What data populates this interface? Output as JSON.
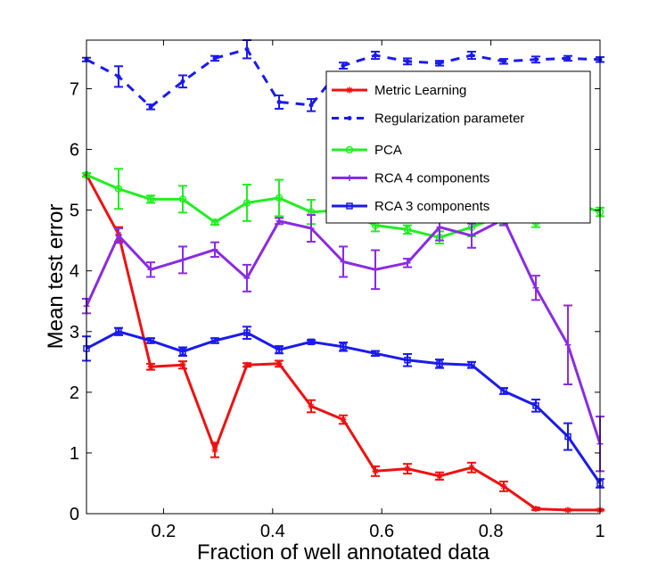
{
  "chart_data": {
    "type": "line",
    "title": "",
    "xlabel": "Fraction of well annotated data",
    "ylabel": "Mean test error",
    "xlim": [
      0.0588,
      1.0
    ],
    "ylim": [
      0,
      7.8
    ],
    "xticks": [
      0.2,
      0.4,
      0.6,
      0.8,
      1
    ],
    "xtick_labels": [
      "0.2",
      "0.4",
      "0.6",
      "0.8",
      "1"
    ],
    "yticks": [
      0,
      1,
      2,
      3,
      4,
      5,
      6,
      7
    ],
    "ytick_labels": [
      "0",
      "1",
      "2",
      "3",
      "4",
      "5",
      "6",
      "7"
    ],
    "grid": false,
    "legend_position": "top-right",
    "x": [
      0.0588,
      0.1176,
      0.1765,
      0.2353,
      0.2941,
      0.3529,
      0.4118,
      0.4706,
      0.5294,
      0.5882,
      0.6471,
      0.7059,
      0.7647,
      0.8235,
      0.8824,
      0.9412,
      1.0
    ],
    "series": [
      {
        "name": "Metric Learning",
        "color": "#ee1111",
        "dash": "solid",
        "marker": "star",
        "values": [
          5.58,
          4.6,
          2.42,
          2.45,
          1.05,
          2.45,
          2.47,
          1.77,
          1.55,
          0.7,
          0.74,
          0.62,
          0.76,
          0.45,
          0.08,
          0.06,
          0.06
        ],
        "errors": [
          0.03,
          0.12,
          0.05,
          0.06,
          0.12,
          0.03,
          0.05,
          0.1,
          0.07,
          0.08,
          0.08,
          0.06,
          0.08,
          0.08,
          0.02,
          0.01,
          0.01
        ]
      },
      {
        "name": "Regularization parameter",
        "color": "#1a1aee",
        "dash": "dashed",
        "marker": "dot",
        "values": [
          7.48,
          7.2,
          6.7,
          7.12,
          7.5,
          7.65,
          6.78,
          6.73,
          7.38,
          7.55,
          7.45,
          7.42,
          7.55,
          7.45,
          7.48,
          7.5,
          7.48
        ],
        "errors": [
          0.03,
          0.17,
          0.04,
          0.1,
          0.04,
          0.15,
          0.11,
          0.1,
          0.05,
          0.06,
          0.05,
          0.04,
          0.06,
          0.04,
          0.05,
          0.04,
          0.04
        ]
      },
      {
        "name": "PCA",
        "color": "#22ee22",
        "dash": "solid",
        "marker": "circle",
        "values": [
          5.58,
          5.35,
          5.18,
          5.18,
          4.8,
          5.12,
          5.2,
          4.97,
          5.0,
          4.75,
          4.68,
          4.55,
          4.72,
          4.92,
          4.8,
          5.15,
          4.97
        ],
        "errors": [
          0.03,
          0.33,
          0.06,
          0.22,
          0.04,
          0.3,
          0.3,
          0.2,
          0.2,
          0.1,
          0.07,
          0.1,
          0.15,
          0.15,
          0.08,
          0.05,
          0.07
        ]
      },
      {
        "name": "RCA 4 components",
        "color": "#8a2be2",
        "dash": "solid",
        "marker": "plus",
        "values": [
          3.42,
          4.58,
          4.02,
          4.18,
          4.35,
          3.88,
          4.82,
          4.7,
          4.15,
          4.02,
          4.13,
          4.72,
          4.58,
          4.85,
          3.72,
          2.78,
          1.15
        ],
        "errors": [
          0.12,
          0.12,
          0.12,
          0.22,
          0.12,
          0.22,
          0.05,
          0.22,
          0.25,
          0.32,
          0.07,
          0.22,
          0.2,
          0.1,
          0.2,
          0.65,
          0.45
        ]
      },
      {
        "name": "RCA 3 components",
        "color": "#1a1aee",
        "dash": "solid",
        "marker": "square",
        "values": [
          2.72,
          3.0,
          2.85,
          2.67,
          2.85,
          2.98,
          2.7,
          2.83,
          2.75,
          2.64,
          2.53,
          2.47,
          2.45,
          2.02,
          1.78,
          1.27,
          0.5
        ],
        "errors": [
          0.2,
          0.06,
          0.04,
          0.07,
          0.04,
          0.1,
          0.06,
          0.03,
          0.07,
          0.04,
          0.1,
          0.07,
          0.05,
          0.05,
          0.1,
          0.22,
          0.07
        ]
      }
    ]
  }
}
